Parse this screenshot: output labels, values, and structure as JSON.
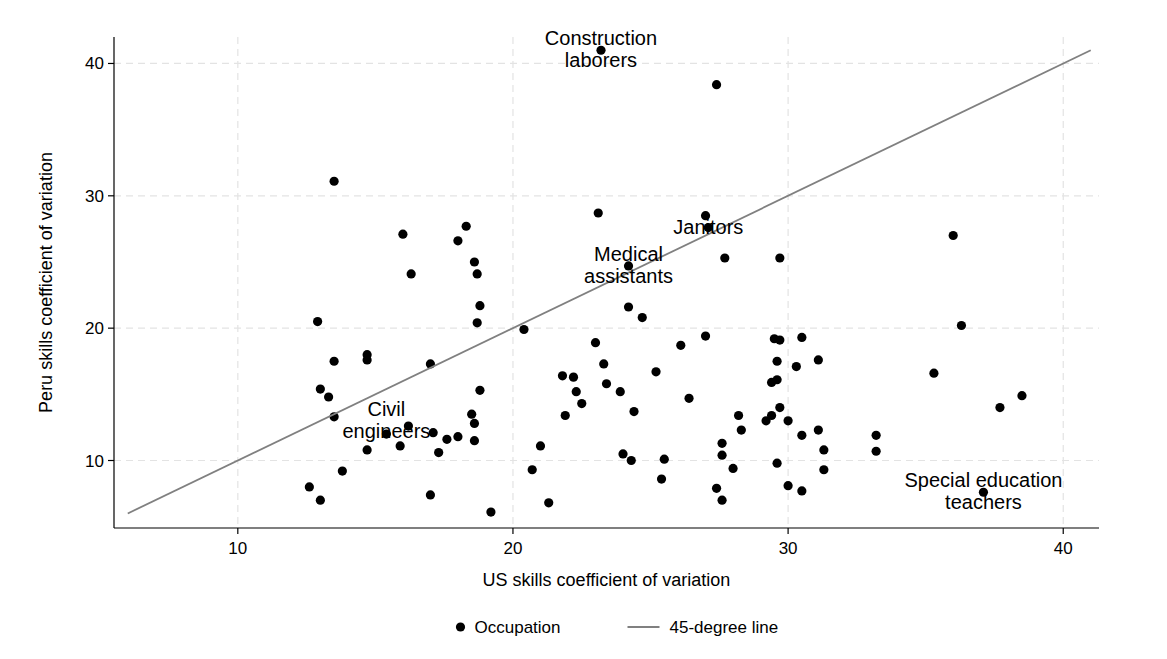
{
  "chart_data": {
    "type": "scatter",
    "x_label": "US skills coefficient of variation",
    "y_label": "Peru skills coefficient of variation",
    "xlim": [
      5.5,
      41.3
    ],
    "ylim": [
      4.9,
      42
    ],
    "xticks": [
      10,
      20,
      30,
      40
    ],
    "yticks": [
      10,
      20,
      30,
      40
    ],
    "grid": true,
    "legend": "bottom",
    "series": [
      {
        "name": "Occupation",
        "type": "scatter",
        "marker": "circle",
        "color": "#000000",
        "x": [
          12.6,
          13.0,
          12.9,
          13.0,
          13.3,
          13.5,
          13.5,
          13.5,
          13.8,
          14.7,
          14.7,
          14.7,
          15.4,
          15.9,
          16.0,
          16.2,
          16.3,
          17.0,
          17.0,
          17.1,
          17.3,
          17.6,
          18.0,
          18.0,
          18.3,
          18.5,
          18.6,
          18.6,
          18.6,
          18.7,
          18.7,
          18.8,
          18.8,
          19.2,
          20.4,
          20.7,
          21.0,
          21.3,
          21.8,
          21.9,
          22.2,
          22.3,
          22.5,
          23.0,
          23.1,
          23.2,
          23.3,
          23.4,
          23.9,
          24.0,
          24.2,
          24.2,
          24.3,
          24.4,
          24.7,
          25.2,
          25.4,
          25.5,
          26.1,
          26.4,
          27.0,
          27.0,
          27.1,
          27.4,
          27.4,
          27.6,
          27.6,
          27.6,
          27.7,
          28.0,
          28.2,
          28.3,
          29.2,
          29.4,
          29.4,
          29.5,
          29.6,
          29.6,
          29.6,
          29.7,
          29.7,
          29.7,
          30.0,
          30.0,
          30.3,
          30.5,
          30.5,
          30.5,
          31.1,
          31.1,
          31.3,
          31.3,
          33.2,
          33.2,
          35.3,
          36.0,
          36.3,
          37.1,
          37.7,
          38.5
        ],
        "values": [
          8.0,
          7.0,
          20.5,
          15.4,
          14.8,
          13.3,
          17.5,
          31.1,
          9.2,
          17.6,
          18.0,
          10.8,
          12.0,
          11.1,
          27.1,
          12.6,
          24.1,
          7.4,
          17.3,
          12.1,
          10.6,
          11.6,
          11.8,
          26.6,
          27.7,
          13.5,
          11.5,
          12.8,
          25.0,
          24.1,
          20.4,
          21.7,
          15.3,
          6.1,
          19.9,
          9.3,
          11.1,
          6.8,
          16.4,
          13.4,
          16.3,
          15.2,
          14.3,
          18.9,
          28.7,
          41.0,
          17.3,
          15.8,
          15.2,
          10.5,
          21.6,
          24.7,
          10.0,
          13.7,
          20.8,
          16.7,
          8.6,
          10.1,
          18.7,
          14.7,
          28.5,
          19.4,
          27.6,
          38.4,
          7.9,
          11.3,
          10.4,
          7.0,
          25.3,
          9.4,
          13.4,
          12.3,
          13.0,
          13.4,
          15.9,
          19.2,
          16.1,
          17.5,
          9.8,
          19.1,
          14.0,
          25.3,
          13.0,
          8.1,
          17.1,
          19.3,
          11.9,
          7.7,
          12.3,
          17.6,
          10.8,
          9.3,
          11.9,
          10.7,
          16.6,
          27.0,
          20.2,
          7.6,
          14.0,
          14.9
        ]
      },
      {
        "name": "45-degree line",
        "type": "line",
        "line_style": "solid",
        "color": "#808080",
        "x": [
          6,
          41
        ],
        "values": [
          6,
          41
        ]
      }
    ],
    "annotations": [
      {
        "text": [
          "Construction",
          "laborers"
        ],
        "x": 23.2,
        "y": 41.0
      },
      {
        "text": [
          "Janitors"
        ],
        "x": 27.1,
        "y": 27.6
      },
      {
        "text": [
          "Medical",
          "assistants"
        ],
        "x": 24.2,
        "y": 24.7
      },
      {
        "text": [
          "Civil",
          "engineers"
        ],
        "x": 15.4,
        "y": 13.0
      },
      {
        "text": [
          "Special education",
          "teachers"
        ],
        "x": 37.1,
        "y": 7.6
      }
    ]
  }
}
